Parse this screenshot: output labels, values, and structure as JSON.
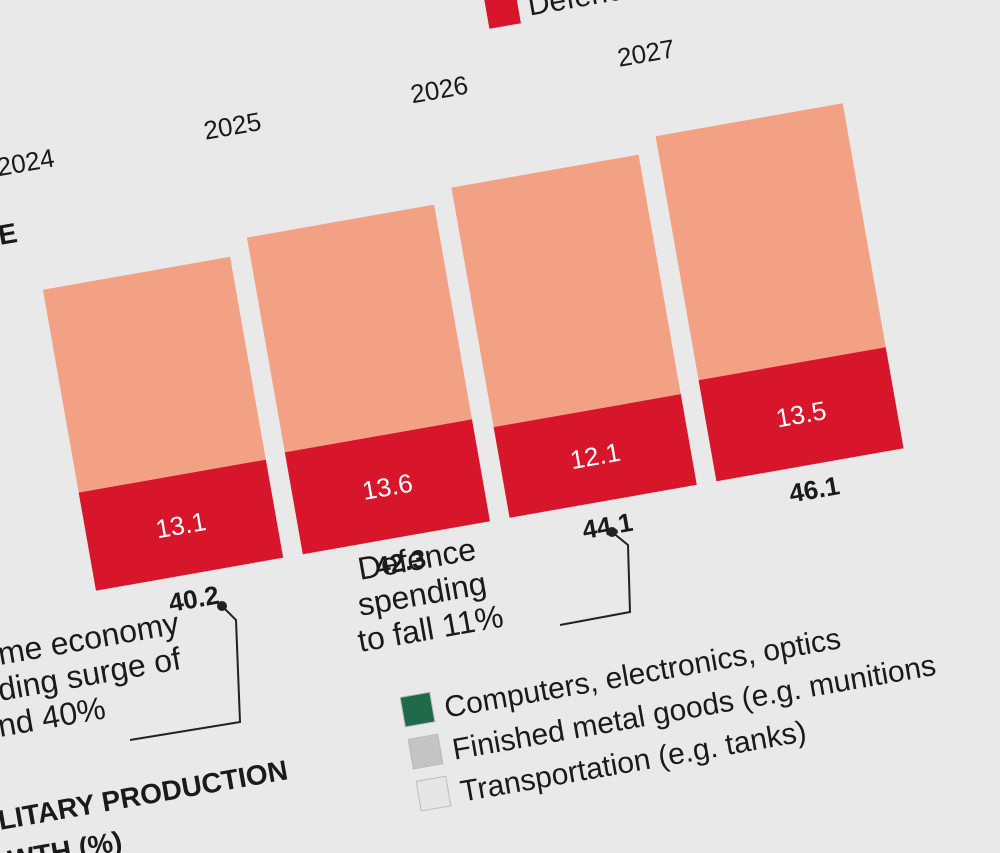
{
  "chart_data": {
    "type": "bar",
    "categories": [
      "2024",
      "2025",
      "2026",
      "2027"
    ],
    "series": [
      {
        "name": "Defence",
        "color": "#d8162b",
        "values": [
          13.1,
          13.6,
          12.1,
          13.5
        ]
      }
    ],
    "totals": [
      40.2,
      42.3,
      44.1,
      46.1
    ],
    "total_color": "#f2a184",
    "ylim": [
      0,
      60
    ],
    "annotations": [
      {
        "lines": [
          "Defence",
          "spending",
          "to fall 11%"
        ]
      },
      {
        "lines": [
          "me economy",
          "ding surge of",
          "nd 40%"
        ]
      }
    ],
    "section_title": [
      "E",
      "LITARY PRODUCTION",
      "WTH (%)"
    ],
    "second_legend": [
      {
        "name": "Computers, electronics, optics",
        "color": "#1f6a4a"
      },
      {
        "name": "Finished metal goods (e.g. munitions",
        "color": "#c4c4c4"
      },
      {
        "name": "Transportation (e.g. tanks)",
        "color": "#e6e6e6"
      }
    ]
  }
}
